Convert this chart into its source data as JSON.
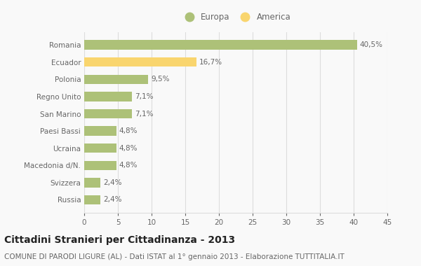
{
  "categories": [
    "Romania",
    "Ecuador",
    "Polonia",
    "Regno Unito",
    "San Marino",
    "Paesi Bassi",
    "Ucraina",
    "Macedonia d/N.",
    "Svizzera",
    "Russia"
  ],
  "values": [
    40.5,
    16.7,
    9.5,
    7.1,
    7.1,
    4.8,
    4.8,
    4.8,
    2.4,
    2.4
  ],
  "labels": [
    "40,5%",
    "16,7%",
    "9,5%",
    "7,1%",
    "7,1%",
    "4,8%",
    "4,8%",
    "4,8%",
    "2,4%",
    "2,4%"
  ],
  "colors": [
    "#adc178",
    "#f9d56e",
    "#adc178",
    "#adc178",
    "#adc178",
    "#adc178",
    "#adc178",
    "#adc178",
    "#adc178",
    "#adc178"
  ],
  "legend_europa_color": "#adc178",
  "legend_america_color": "#f9d56e",
  "xlim": [
    0,
    45
  ],
  "xticks": [
    0,
    5,
    10,
    15,
    20,
    25,
    30,
    35,
    40,
    45
  ],
  "title": "Cittadini Stranieri per Cittadinanza - 2013",
  "subtitle": "COMUNE DI PARODI LIGURE (AL) - Dati ISTAT al 1° gennaio 2013 - Elaborazione TUTTITALIA.IT",
  "background_color": "#f9f9f9",
  "grid_color": "#dddddd",
  "bar_height": 0.55,
  "title_fontsize": 10,
  "subtitle_fontsize": 7.5,
  "label_fontsize": 7.5,
  "tick_fontsize": 7.5,
  "legend_fontsize": 8.5,
  "text_color": "#666666",
  "title_color": "#222222"
}
